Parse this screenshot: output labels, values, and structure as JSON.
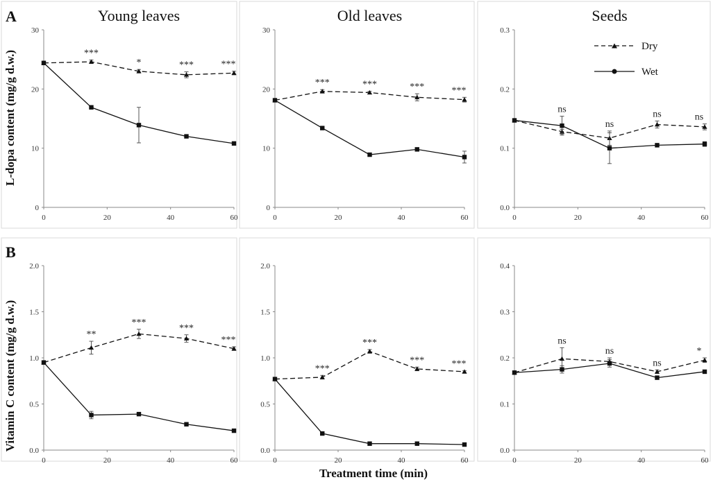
{
  "figure": {
    "row_labels": [
      "A",
      "B"
    ],
    "xlabel": "Treatment time (min)",
    "ylabels": [
      "L-dopa content (mg/g d.w.)",
      "Vitamin C content (mg/g d.w.)"
    ]
  },
  "legend": {
    "dry": "Dry",
    "wet": "Wet"
  },
  "chart_data": [
    {
      "type": "line",
      "row": 0,
      "col": 0,
      "title": "Young leaves",
      "x": [
        0,
        15,
        30,
        45,
        60
      ],
      "xlim": [
        0,
        60
      ],
      "xticks": [
        "0",
        "20",
        "40",
        "60"
      ],
      "ylim": [
        0,
        30
      ],
      "yticks": [
        "0",
        "10",
        "20",
        "30"
      ],
      "series": [
        {
          "name": "Dry",
          "style": "dashed-triangle",
          "values": [
            24.4,
            24.6,
            23.0,
            22.4,
            22.7
          ],
          "err": [
            0.3,
            0.3,
            0.3,
            0.5,
            0.3
          ]
        },
        {
          "name": "Wet",
          "style": "solid-square",
          "values": [
            24.4,
            16.9,
            13.9,
            12.0,
            10.8
          ],
          "err": [
            0.2,
            0.3,
            3.0,
            0.2,
            0.2
          ]
        }
      ],
      "significance": [
        "***",
        "*",
        "***",
        "***"
      ]
    },
    {
      "type": "line",
      "row": 0,
      "col": 1,
      "title": "Old leaves",
      "x": [
        0,
        15,
        30,
        45,
        60
      ],
      "xlim": [
        0,
        60
      ],
      "xticks": [
        "0",
        "20",
        "40",
        "60"
      ],
      "ylim": [
        0,
        30
      ],
      "yticks": [
        "0",
        "10",
        "20",
        "30"
      ],
      "series": [
        {
          "name": "Dry",
          "style": "dashed-triangle",
          "values": [
            18.1,
            19.6,
            19.4,
            18.6,
            18.2
          ],
          "err": [
            0.2,
            0.3,
            0.2,
            0.6,
            0.4
          ]
        },
        {
          "name": "Wet",
          "style": "solid-square",
          "values": [
            18.1,
            13.4,
            8.9,
            9.8,
            8.5
          ],
          "err": [
            0.2,
            0.2,
            0.2,
            0.2,
            1.0
          ]
        }
      ],
      "significance": [
        "***",
        "***",
        "***",
        "***"
      ]
    },
    {
      "type": "line",
      "row": 0,
      "col": 2,
      "title": "Seeds",
      "x": [
        0,
        15,
        30,
        45,
        60
      ],
      "xlim": [
        0,
        60
      ],
      "xticks": [
        "0",
        "20",
        "40",
        "60"
      ],
      "ylim": [
        0,
        0.3
      ],
      "yticks": [
        "0.0",
        "0.1",
        "0.2",
        "0.3"
      ],
      "series": [
        {
          "name": "Dry",
          "style": "dashed-triangle",
          "values": [
            0.147,
            0.128,
            0.117,
            0.14,
            0.136
          ],
          "err": [
            0.003,
            0.004,
            0.012,
            0.006,
            0.005
          ]
        },
        {
          "name": "Wet",
          "style": "solid-square",
          "values": [
            0.147,
            0.138,
            0.1,
            0.105,
            0.107
          ],
          "err": [
            0.003,
            0.016,
            0.026,
            0.003,
            0.004
          ]
        }
      ],
      "significance": [
        "ns",
        "ns",
        "ns",
        "ns"
      ]
    },
    {
      "type": "line",
      "row": 1,
      "col": 0,
      "title": "",
      "x": [
        0,
        15,
        30,
        45,
        60
      ],
      "xlim": [
        0,
        60
      ],
      "xticks": [
        "0",
        "20",
        "40",
        "60"
      ],
      "ylim": [
        0,
        2.0
      ],
      "yticks": [
        "0.0",
        "0.5",
        "1.0",
        "1.5",
        "2.0"
      ],
      "series": [
        {
          "name": "Dry",
          "style": "dashed-triangle",
          "values": [
            0.95,
            1.11,
            1.26,
            1.21,
            1.1
          ],
          "err": [
            0.02,
            0.07,
            0.05,
            0.04,
            0.02
          ]
        },
        {
          "name": "Wet",
          "style": "solid-square",
          "values": [
            0.95,
            0.38,
            0.39,
            0.28,
            0.21
          ],
          "err": [
            0.02,
            0.04,
            0.01,
            0.01,
            0.01
          ]
        }
      ],
      "significance": [
        "**",
        "***",
        "***",
        "***"
      ]
    },
    {
      "type": "line",
      "row": 1,
      "col": 1,
      "title": "",
      "x": [
        0,
        15,
        30,
        45,
        60
      ],
      "xlim": [
        0,
        60
      ],
      "xticks": [
        "0",
        "20",
        "40",
        "60"
      ],
      "ylim": [
        0,
        2.0
      ],
      "yticks": [
        "0.0",
        "0.5",
        "1.0",
        "1.5",
        "2.0"
      ],
      "series": [
        {
          "name": "Dry",
          "style": "dashed-triangle",
          "values": [
            0.77,
            0.79,
            1.07,
            0.88,
            0.85
          ],
          "err": [
            0.01,
            0.02,
            0.02,
            0.02,
            0.01
          ]
        },
        {
          "name": "Wet",
          "style": "solid-square",
          "values": [
            0.77,
            0.18,
            0.07,
            0.07,
            0.06
          ],
          "err": [
            0.01,
            0.01,
            0.01,
            0.01,
            0.01
          ]
        }
      ],
      "significance": [
        "***",
        "***",
        "***",
        "***"
      ]
    },
    {
      "type": "line",
      "row": 1,
      "col": 2,
      "title": "",
      "x": [
        0,
        15,
        30,
        45,
        60
      ],
      "xlim": [
        0,
        60
      ],
      "xticks": [
        "0",
        "20",
        "40",
        "60"
      ],
      "ylim": [
        0,
        0.4
      ],
      "yticks": [
        "0.0",
        "0.1",
        "0.2",
        "0.3",
        "0.4"
      ],
      "series": [
        {
          "name": "Dry",
          "style": "dashed-triangle",
          "values": [
            0.168,
            0.198,
            0.192,
            0.17,
            0.195
          ],
          "err": [
            0.003,
            0.024,
            0.008,
            0.004,
            0.005
          ]
        },
        {
          "name": "Wet",
          "style": "solid-square",
          "values": [
            0.168,
            0.175,
            0.188,
            0.157,
            0.17
          ],
          "err": [
            0.003,
            0.008,
            0.008,
            0.003,
            0.003
          ]
        }
      ],
      "significance": [
        "ns",
        "ns",
        "ns",
        "*"
      ]
    }
  ]
}
